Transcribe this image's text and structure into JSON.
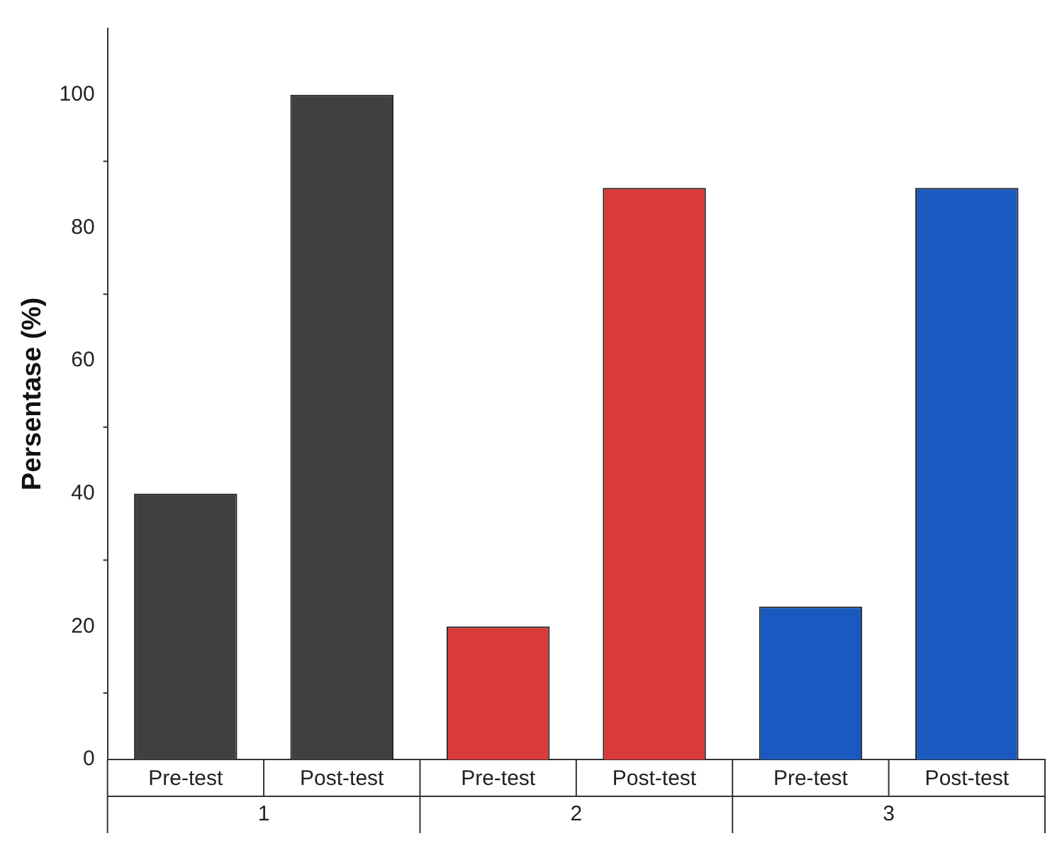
{
  "chart_data": {
    "type": "bar",
    "ylabel": "Persentase (%)",
    "categories": [
      "Pre-test",
      "Post-test",
      "Pre-test",
      "Post-test",
      "Pre-test",
      "Post-test"
    ],
    "values": [
      40,
      100,
      20,
      86,
      23,
      86
    ],
    "colors": [
      "#404040",
      "#404040",
      "#d93a3a",
      "#d93a3a",
      "#1a5ac0",
      "#1a5ac0"
    ],
    "ylim": [
      0,
      110
    ],
    "yticks": [
      0,
      20,
      40,
      60,
      80,
      100
    ],
    "grid": false,
    "legend": false,
    "annotations": [
      "1",
      "2",
      "3"
    ]
  }
}
